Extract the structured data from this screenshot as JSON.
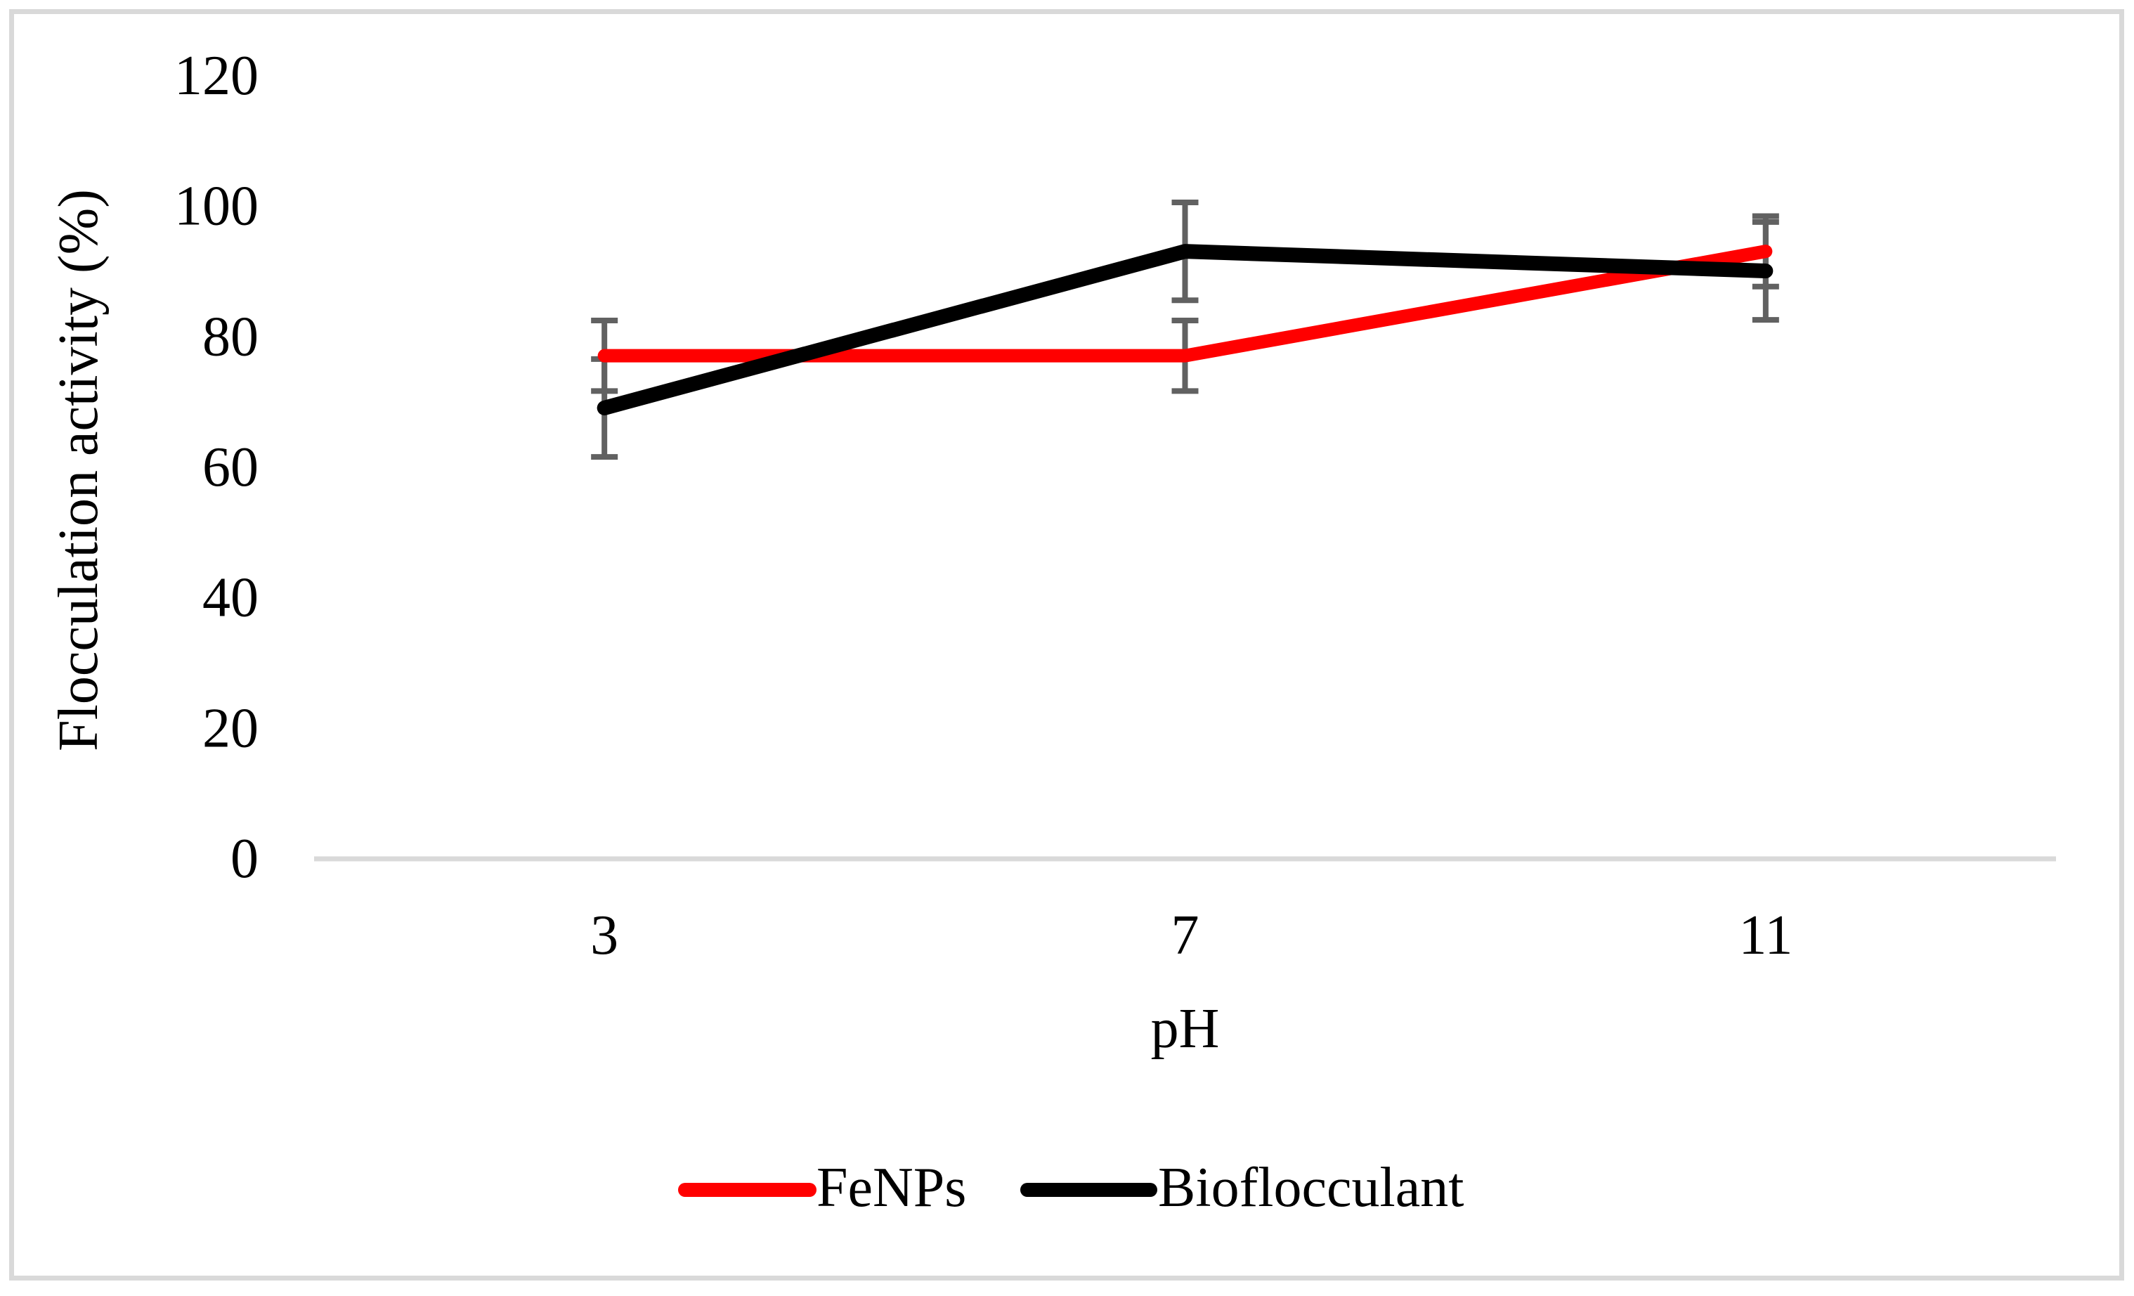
{
  "figure": {
    "background_color": "#FFFFFF",
    "border_color": "#D9D9D9"
  },
  "chart_data": {
    "type": "line",
    "title": "",
    "xlabel": "pH",
    "ylabel": "Flocculation activity (%)",
    "categories": [
      "3",
      "7",
      "11"
    ],
    "x_values": [
      3,
      7,
      11
    ],
    "series": [
      {
        "name": "FeNPs",
        "color": "#FF0000",
        "values": [
          77,
          77,
          93
        ],
        "error_bar": 5.4
      },
      {
        "name": "Bioflocculant",
        "color": "#000000",
        "values": [
          69,
          93,
          90
        ],
        "error_bar": 7.5
      }
    ],
    "ylim": [
      0,
      120
    ],
    "yticks": [
      0,
      20,
      40,
      60,
      80,
      100,
      120
    ],
    "grid": false,
    "axis_line_color": "#D9D9D9",
    "error_bar_color": "#616161",
    "legend_position": "bottom-center"
  }
}
